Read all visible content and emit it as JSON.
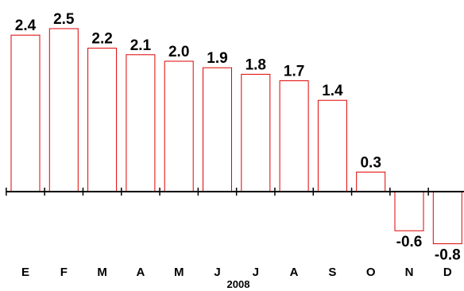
{
  "chart_data": {
    "type": "bar",
    "categories": [
      "E",
      "F",
      "M",
      "A",
      "M",
      "J",
      "J",
      "A",
      "S",
      "O",
      "N",
      "D"
    ],
    "values": [
      2.4,
      2.5,
      2.2,
      2.1,
      2.0,
      1.9,
      1.8,
      1.7,
      1.4,
      0.3,
      -0.6,
      -0.8
    ],
    "value_labels": [
      "2.4",
      "2.5",
      "2.2",
      "2.1",
      "2.0",
      "1.9",
      "1.8",
      "1.7",
      "1.4",
      "0.3",
      "-0.6",
      "-0.8"
    ],
    "xlabel": "2008",
    "ylabel": "",
    "ylim": [
      -0.9,
      2.6
    ],
    "grid": false,
    "legend": "none",
    "bar_fill": "#ffffff",
    "bar_stroke": "#e00000"
  }
}
